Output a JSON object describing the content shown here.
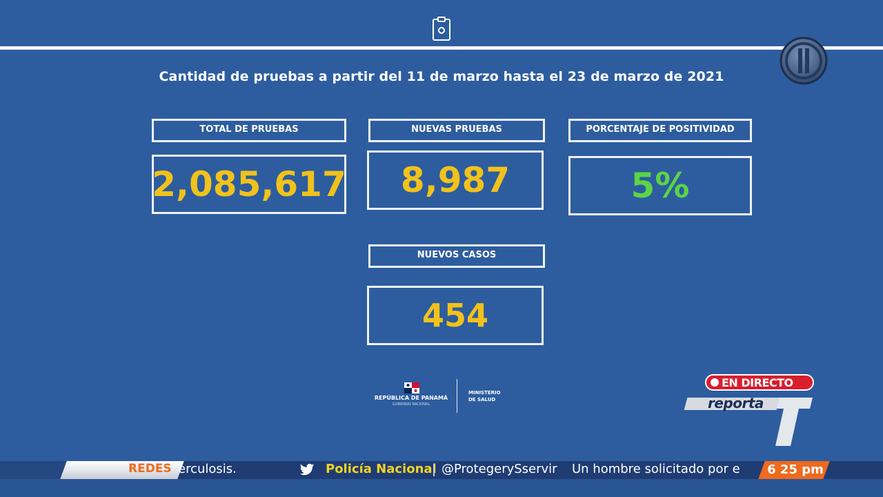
{
  "header": {
    "title": "Cantidad de pruebas a partir del 11 de marzo hasta el  23 de marzo de 2021"
  },
  "stats": {
    "total": {
      "label": "TOTAL DE PRUEBAS",
      "value": "2,085,617"
    },
    "nuevas": {
      "label": "NUEVAS PRUEBAS",
      "value": "8,987"
    },
    "positividad": {
      "label": "PORCENTAJE DE POSITIVIDAD",
      "value": "5%"
    },
    "casos": {
      "label": "NUEVOS CASOS",
      "value": "454"
    }
  },
  "footer_logo": {
    "republica": "REPÚBLICA DE PANAMÁ",
    "gobierno": "GOBIERNO NACIONAL",
    "ministerio_line1": "MINISTERIO",
    "ministerio_line2": "DE SALUD"
  },
  "overlay": {
    "live_label": "EN DIRECTO",
    "program": "reporta"
  },
  "ticker": {
    "section_label": "REDES",
    "scroll_text": "erculosis.",
    "twitter_account": "Policía Nacional",
    "twitter_handle": "@ProtegerySservir",
    "news_text": "Un hombre solicitado por e",
    "time": "6 25 pm"
  },
  "colors": {
    "background": "#2d5d9f",
    "value_yellow": "#f1c21b",
    "value_green": "#5dd447",
    "live_red": "#d91e2e",
    "ticker_orange": "#ee6a1e"
  },
  "icons": [
    "clipboard-icon",
    "channel-logo",
    "panama-flag-icon",
    "twitter-bird-icon",
    "live-dot-icon"
  ]
}
